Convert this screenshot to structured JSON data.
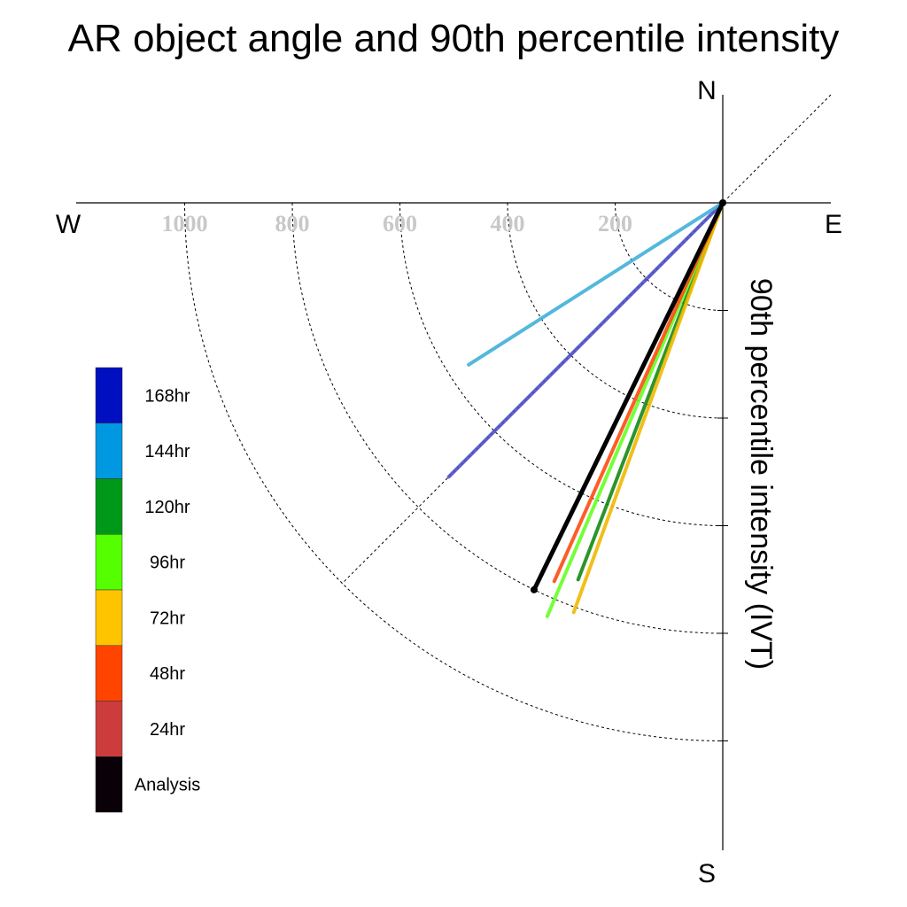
{
  "chart_data": {
    "type": "polar-vector",
    "title": "AR object angle and 90th percentile intensity",
    "ylabel": "90th percentile intensity (IVT)",
    "compass": {
      "north": "N",
      "south": "S",
      "east": "E",
      "west": "W"
    },
    "radial_ticks": [
      "1000",
      "800",
      "600",
      "400",
      "200"
    ],
    "radial_rings": [
      200,
      400,
      600,
      800,
      1000
    ],
    "rmax": 1200,
    "series": [
      {
        "name": "168hr",
        "color": "#5050c8",
        "angle_deg": 225,
        "intensity": 720
      },
      {
        "name": "144hr",
        "color": "#40b0d8",
        "angle_deg": 237.5,
        "intensity": 560
      },
      {
        "name": "120hr",
        "color": "#148a14",
        "angle_deg": 201,
        "intensity": 750
      },
      {
        "name": "96hr",
        "color": "#66ff22",
        "angle_deg": 203,
        "intensity": 835
      },
      {
        "name": "72hr",
        "color": "#f0b800",
        "angle_deg": 200,
        "intensity": 810
      },
      {
        "name": "48hr",
        "color": "#ff4a10",
        "angle_deg": 204,
        "intensity": 770
      },
      {
        "name": "24hr",
        "color": "#c83c3c",
        "angle_deg": 206,
        "intensity": 800
      },
      {
        "name": "Analysis",
        "color": "#000000",
        "angle_deg": 206,
        "intensity": 800
      }
    ],
    "legend": [
      {
        "label": "168hr",
        "color": "#0010c0"
      },
      {
        "label": "144hr",
        "color": "#0098e0"
      },
      {
        "label": "120hr",
        "color": "#009818"
      },
      {
        "label": "96hr",
        "color": "#55ff00"
      },
      {
        "label": "72hr",
        "color": "#ffc400"
      },
      {
        "label": "48hr",
        "color": "#ff4400"
      },
      {
        "label": "24hr",
        "color": "#cc3c3c"
      },
      {
        "label": "Analysis",
        "color": "#0a0008"
      }
    ],
    "grid": true
  }
}
